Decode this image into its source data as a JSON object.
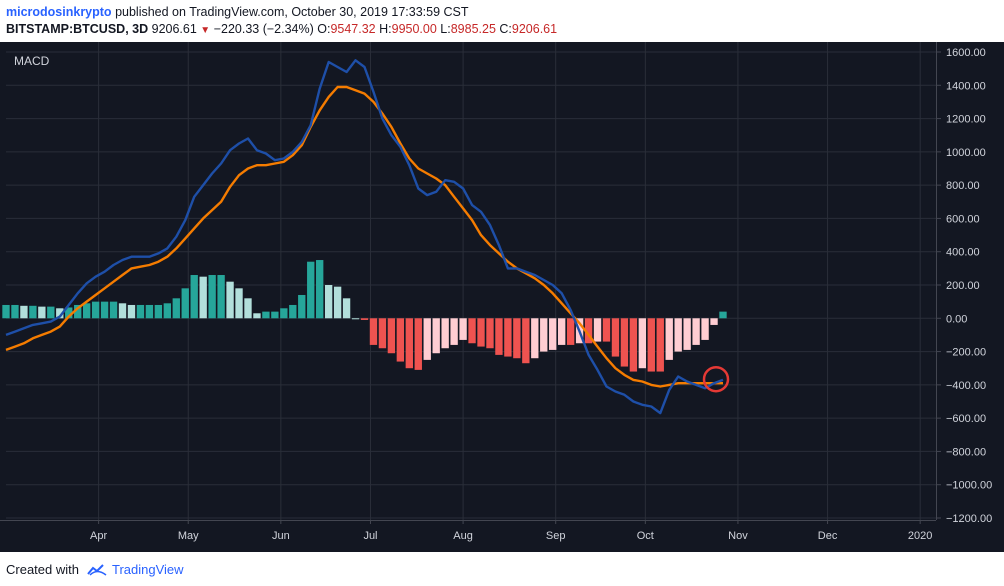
{
  "header": {
    "author": "microdosinkrypto",
    "published_text": "published on TradingView.com, October 30, 2019 17:33:59 CST",
    "symbol": "BITSTAMP:BTCUSD, 3D",
    "last": "9206.61",
    "change": "−220.33 (−2.34%)",
    "open_label": "O:",
    "open": "9547.32",
    "high_label": "H:",
    "high": "9950.00",
    "low_label": "L:",
    "low": "8985.25",
    "close_label": "C:",
    "close": "9206.61",
    "down_color": "#c62828"
  },
  "footer": {
    "created_with": "Created with",
    "brand": "TradingView",
    "brand_color": "#2962ff"
  },
  "chart_data": {
    "type": "line",
    "indicator_label": "MACD",
    "ylim": [
      -1200,
      1600
    ],
    "yticks": [
      1600,
      1400,
      1200,
      1000,
      800,
      600,
      400,
      200,
      0,
      -200,
      -400,
      -600,
      -800,
      -1000,
      -1200
    ],
    "ytick_labels": [
      "1600.00",
      "1400.00",
      "1200.00",
      "1000.00",
      "800.00",
      "600.00",
      "400.00",
      "200.00",
      "0.00",
      "−200.00",
      "−400.00",
      "−600.00",
      "−800.00",
      "−1000.00",
      "−1200.00"
    ],
    "x_labels": [
      "Apr",
      "May",
      "Jun",
      "Jul",
      "Aug",
      "Sep",
      "Oct",
      "Nov",
      "Dec",
      "2020"
    ],
    "x": [
      "2019-03-01",
      "2019-03-04",
      "2019-03-07",
      "2019-03-10",
      "2019-03-13",
      "2019-03-16",
      "2019-03-19",
      "2019-03-22",
      "2019-03-25",
      "2019-03-28",
      "2019-03-31",
      "2019-04-03",
      "2019-04-06",
      "2019-04-09",
      "2019-04-12",
      "2019-04-15",
      "2019-04-18",
      "2019-04-21",
      "2019-04-24",
      "2019-04-27",
      "2019-04-30",
      "2019-05-03",
      "2019-05-06",
      "2019-05-09",
      "2019-05-12",
      "2019-05-15",
      "2019-05-18",
      "2019-05-21",
      "2019-05-24",
      "2019-05-27",
      "2019-05-30",
      "2019-06-02",
      "2019-06-05",
      "2019-06-08",
      "2019-06-11",
      "2019-06-14",
      "2019-06-17",
      "2019-06-20",
      "2019-06-23",
      "2019-06-26",
      "2019-06-29",
      "2019-07-02",
      "2019-07-05",
      "2019-07-08",
      "2019-07-11",
      "2019-07-14",
      "2019-07-17",
      "2019-07-20",
      "2019-07-23",
      "2019-07-26",
      "2019-07-29",
      "2019-08-01",
      "2019-08-04",
      "2019-08-07",
      "2019-08-10",
      "2019-08-13",
      "2019-08-16",
      "2019-08-19",
      "2019-08-22",
      "2019-08-25",
      "2019-08-28",
      "2019-08-31",
      "2019-09-03",
      "2019-09-06",
      "2019-09-09",
      "2019-09-12",
      "2019-09-15",
      "2019-09-18",
      "2019-09-21",
      "2019-09-24",
      "2019-09-27",
      "2019-09-30",
      "2019-10-03",
      "2019-10-06",
      "2019-10-09",
      "2019-10-12",
      "2019-10-15",
      "2019-10-18",
      "2019-10-21",
      "2019-10-24",
      "2019-10-27"
    ],
    "series": [
      {
        "key": "macd",
        "color": "#1e4fa8",
        "values": [
          -100,
          -80,
          -60,
          -40,
          -30,
          -20,
          10,
          80,
          150,
          210,
          250,
          280,
          320,
          350,
          370,
          370,
          370,
          390,
          420,
          490,
          590,
          730,
          800,
          870,
          930,
          1010,
          1050,
          1080,
          1010,
          990,
          950,
          960,
          1000,
          1060,
          1160,
          1380,
          1540,
          1510,
          1480,
          1550,
          1510,
          1360,
          1200,
          1100,
          1030,
          920,
          780,
          740,
          760,
          830,
          820,
          780,
          680,
          640,
          560,
          440,
          300,
          300,
          280,
          260,
          230,
          200,
          150,
          50,
          -80,
          -220,
          -310,
          -410,
          -440,
          -460,
          -500,
          -520,
          -530,
          -570,
          -430,
          -350,
          -380,
          -400,
          -420,
          -390,
          -370
        ]
      },
      {
        "key": "signal",
        "color": "#f57c00",
        "values": [
          -190,
          -170,
          -150,
          -120,
          -100,
          -80,
          -50,
          10,
          60,
          100,
          140,
          180,
          220,
          260,
          300,
          310,
          320,
          340,
          370,
          420,
          480,
          540,
          600,
          650,
          700,
          790,
          860,
          900,
          920,
          920,
          930,
          940,
          980,
          1040,
          1150,
          1250,
          1330,
          1390,
          1390,
          1370,
          1350,
          1300,
          1230,
          1150,
          1050,
          960,
          900,
          870,
          840,
          800,
          730,
          660,
          590,
          500,
          440,
          390,
          340,
          300,
          270,
          240,
          200,
          150,
          90,
          30,
          -30,
          -100,
          -170,
          -240,
          -300,
          -340,
          -370,
          -380,
          -400,
          -410,
          -400,
          -390,
          -390,
          -390,
          -390,
          -390,
          -390
        ]
      },
      {
        "key": "histogram",
        "colors": {
          "pos_strong": "#26a69a",
          "pos_weak": "#b2dfdb",
          "neg_strong": "#ef5350",
          "neg_weak": "#ffcdd2"
        },
        "values": [
          80,
          80,
          75,
          75,
          70,
          70,
          60,
          65,
          80,
          90,
          100,
          100,
          100,
          90,
          80,
          80,
          80,
          80,
          90,
          120,
          180,
          260,
          250,
          260,
          260,
          220,
          180,
          120,
          30,
          40,
          40,
          60,
          80,
          140,
          340,
          350,
          200,
          190,
          120,
          0,
          -10,
          -160,
          -180,
          -210,
          -260,
          -300,
          -310,
          -250,
          -210,
          -180,
          -160,
          -130,
          -150,
          -170,
          -180,
          -220,
          -230,
          -240,
          -270,
          -240,
          -200,
          -190,
          -160,
          -160,
          -150,
          -150,
          -140,
          -140,
          -230,
          -290,
          -320,
          -300,
          -320,
          -320,
          -250,
          -200,
          -190,
          -160,
          -130,
          -40,
          40
        ]
      }
    ]
  }
}
